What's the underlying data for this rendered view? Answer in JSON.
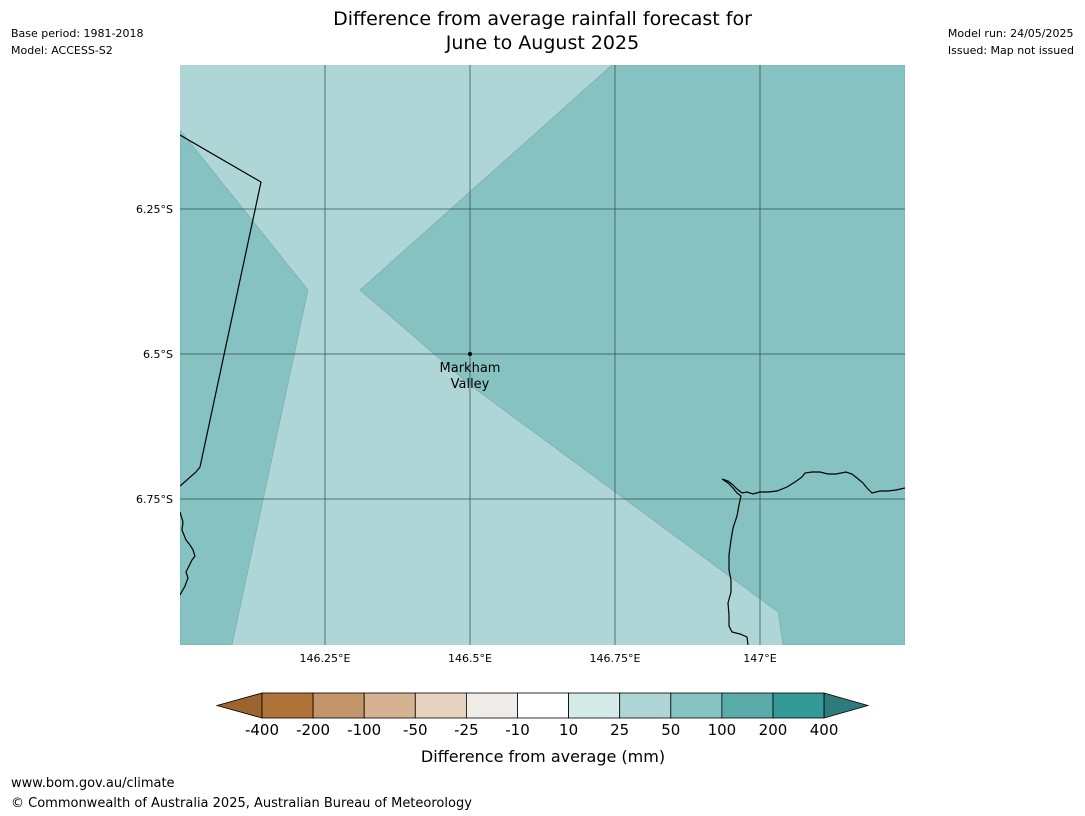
{
  "header": {
    "title_line1": "Difference from average rainfall forecast for",
    "title_line2": "June to August 2025",
    "base_period": "Base period: 1981-2018",
    "model": "Model: ACCESS-S2",
    "model_run": "Model run: 24/05/2025",
    "issued": "Issued: Map not issued"
  },
  "map": {
    "longitude_ticks": [
      "146.25°E",
      "146.5°E",
      "146.75°E",
      "147°E"
    ],
    "latitude_ticks": [
      "6.25°S",
      "6.5°S",
      "6.75°S"
    ],
    "place": {
      "name_line1": "Markham",
      "name_line2": "Valley"
    },
    "colors": {
      "category_25_50": "#aed6d6",
      "category_50_100": "#86c2c1",
      "coastline": "#000000",
      "gridline": "#2f4f4f"
    }
  },
  "legend": {
    "title": "Difference from average (mm)",
    "labels": [
      "-400",
      "-200",
      "-100",
      "-50",
      "-25",
      "-10",
      "10",
      "25",
      "50",
      "100",
      "200",
      "400"
    ],
    "colors": [
      "#9c6430",
      "#b07339",
      "#c4946a",
      "#d5b291",
      "#e6d2bf",
      "#f0ece8",
      "#ffffff",
      "#d5ebea",
      "#aed6d6",
      "#86c2c1",
      "#5aacab",
      "#339a98",
      "#2d7b7a"
    ]
  },
  "footer": {
    "url": "www.bom.gov.au/climate",
    "copyright": "© Commonwealth of Australia 2025, Australian Bureau of Meteorology"
  }
}
